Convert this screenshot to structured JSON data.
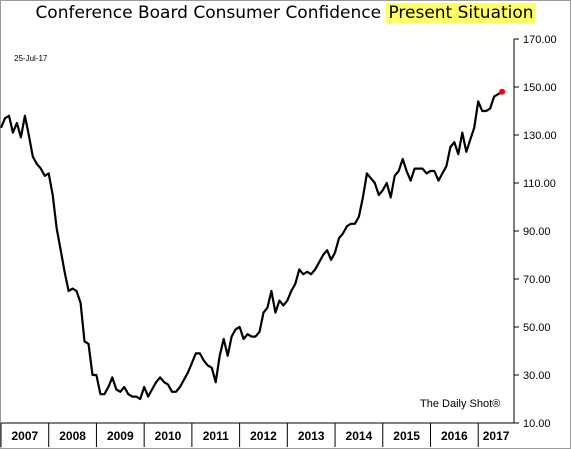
{
  "title_main": "Conference Board Consumer Confidence ",
  "title_highlight": "Present Situation",
  "date_label": "25-Jul-17",
  "source_label": "The Daily Shot®",
  "highlight_color": "#ffff66",
  "line_color": "#000000",
  "last_point_color": "#ff0000",
  "chart_data": {
    "type": "line",
    "title": "Conference Board Consumer Confidence Present Situation",
    "xlabel": "",
    "ylabel": "",
    "x_range": [
      2007.0,
      2017.75
    ],
    "ylim": [
      10,
      170
    ],
    "y_ticks": [
      "10.00",
      "30.00",
      "50.00",
      "70.00",
      "90.00",
      "110.00",
      "130.00",
      "150.00",
      "170.00"
    ],
    "x_ticks": [
      "2007",
      "2008",
      "2009",
      "2010",
      "2011",
      "2012",
      "2013",
      "2014",
      "2015",
      "2016",
      "2017"
    ],
    "grid": false,
    "series": [
      {
        "x": [
          2007.0,
          2007.083,
          2007.167,
          2007.25,
          2007.333,
          2007.417,
          2007.5,
          2007.583,
          2007.667,
          2007.75,
          2007.833,
          2007.917,
          2008.0,
          2008.083,
          2008.167,
          2008.25,
          2008.333,
          2008.417,
          2008.5,
          2008.583,
          2008.667,
          2008.75,
          2008.833,
          2008.917,
          2009.0,
          2009.083,
          2009.167,
          2009.25,
          2009.333,
          2009.417,
          2009.5,
          2009.583,
          2009.667,
          2009.75,
          2009.833,
          2009.917,
          2010.0,
          2010.083,
          2010.167,
          2010.25,
          2010.333,
          2010.417,
          2010.5,
          2010.583,
          2010.667,
          2010.75,
          2010.833,
          2010.917,
          2011.0,
          2011.083,
          2011.167,
          2011.25,
          2011.333,
          2011.417,
          2011.5,
          2011.583,
          2011.667,
          2011.75,
          2011.833,
          2011.917,
          2012.0,
          2012.083,
          2012.167,
          2012.25,
          2012.333,
          2012.417,
          2012.5,
          2012.583,
          2012.667,
          2012.75,
          2012.833,
          2012.917,
          2013.0,
          2013.083,
          2013.167,
          2013.25,
          2013.333,
          2013.417,
          2013.5,
          2013.583,
          2013.667,
          2013.75,
          2013.833,
          2013.917,
          2014.0,
          2014.083,
          2014.167,
          2014.25,
          2014.333,
          2014.417,
          2014.5,
          2014.583,
          2014.667,
          2014.75,
          2014.833,
          2014.917,
          2015.0,
          2015.083,
          2015.167,
          2015.25,
          2015.333,
          2015.417,
          2015.5,
          2015.583,
          2015.667,
          2015.75,
          2015.833,
          2015.917,
          2016.0,
          2016.083,
          2016.167,
          2016.25,
          2016.333,
          2016.417,
          2016.5,
          2016.583,
          2016.667,
          2016.75,
          2016.833,
          2016.917,
          2017.0,
          2017.083,
          2017.167,
          2017.25,
          2017.333,
          2017.417,
          2017.5
        ],
        "values": [
          133,
          137,
          138,
          131,
          135,
          129,
          138,
          130,
          121,
          118,
          116,
          113,
          114,
          105,
          91,
          82,
          73,
          65,
          66,
          65,
          60,
          44,
          43,
          30,
          30,
          22,
          22,
          25,
          29,
          24,
          23,
          25,
          22,
          21,
          21,
          20,
          25,
          21,
          24,
          27,
          29,
          27,
          26,
          23,
          23,
          25,
          28,
          31,
          35,
          39,
          39,
          36,
          34,
          33,
          27,
          38,
          45,
          38,
          46,
          49,
          50,
          45,
          47,
          46,
          46,
          48,
          56,
          58,
          65,
          56,
          61,
          59,
          61,
          65,
          68,
          74,
          72,
          73,
          72,
          74,
          77,
          80,
          82,
          78,
          81,
          87,
          89,
          92,
          93,
          93,
          96,
          104,
          114,
          112,
          110,
          105,
          107,
          110,
          104,
          113,
          115,
          120,
          115,
          111,
          116,
          116,
          116,
          114,
          115,
          115,
          111,
          114,
          117,
          125,
          127,
          122,
          131,
          123,
          128,
          133,
          144,
          140,
          140,
          141,
          146,
          147,
          148
        ]
      }
    ]
  }
}
